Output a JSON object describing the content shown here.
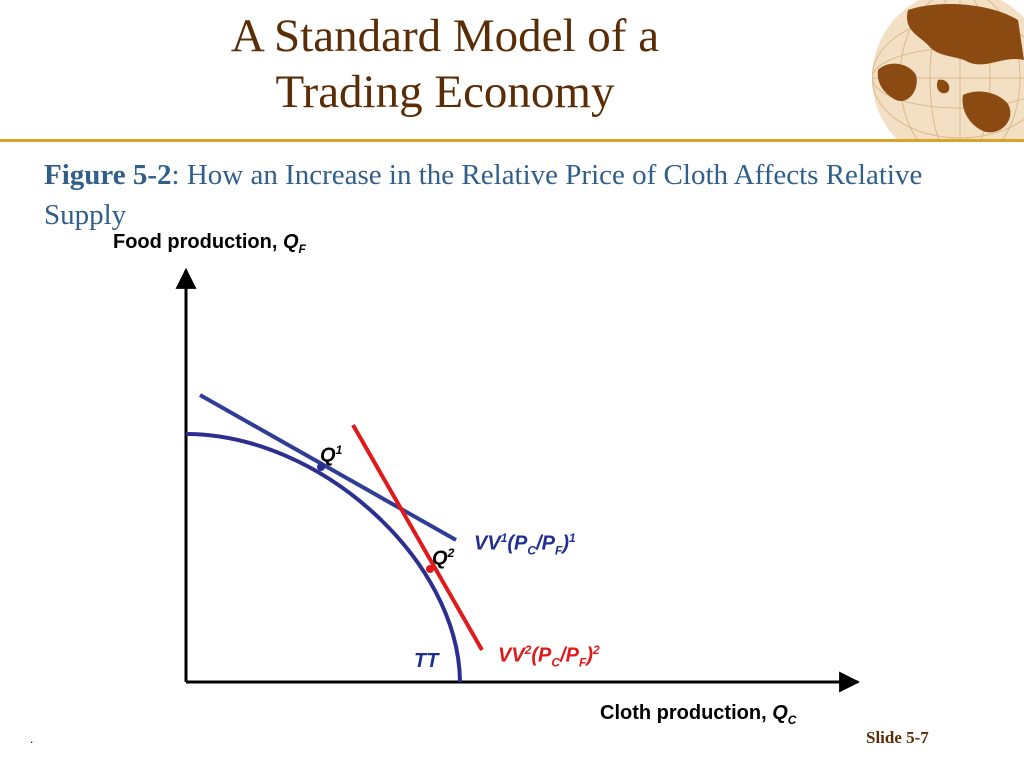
{
  "title": {
    "line1": "A Standard Model of a",
    "line2": "Trading Economy"
  },
  "caption": {
    "figure": "Figure 5-2",
    "text": ": How an Increase in the Relative Price of Cloth Affects Relative Supply"
  },
  "axes": {
    "y_label": "Food production, ",
    "y_var": "Q",
    "y_sub": "F",
    "x_label": "Cloth production, ",
    "x_var": "Q",
    "x_sub": "C"
  },
  "points": {
    "q1": {
      "var": "Q",
      "sup": "1"
    },
    "q2": {
      "var": "Q",
      "sup": "2"
    }
  },
  "curves": {
    "tt": "TT",
    "vv1": {
      "var": "VV",
      "sup": "1",
      "open": "(",
      "pc": "P",
      "pc_sub": "C",
      "slash": "/",
      "pf": "P",
      "pf_sub": "F",
      "close": ")",
      "exp": "1"
    },
    "vv2": {
      "var": "VV",
      "sup": "2",
      "open": "(",
      "pc": "P",
      "pc_sub": "C",
      "slash": "/",
      "pf": "P",
      "pf_sub": "F",
      "close": ")",
      "exp": "2"
    }
  },
  "colors": {
    "tt": "#2b2f8f",
    "vv1": "#2f3d96",
    "vv2": "#e01a1a",
    "title": "#5a2d06",
    "caption": "#2f5f8a",
    "rule": "#d9a22b"
  },
  "footer": {
    "dot": ".",
    "slide": "Slide 5-7"
  }
}
